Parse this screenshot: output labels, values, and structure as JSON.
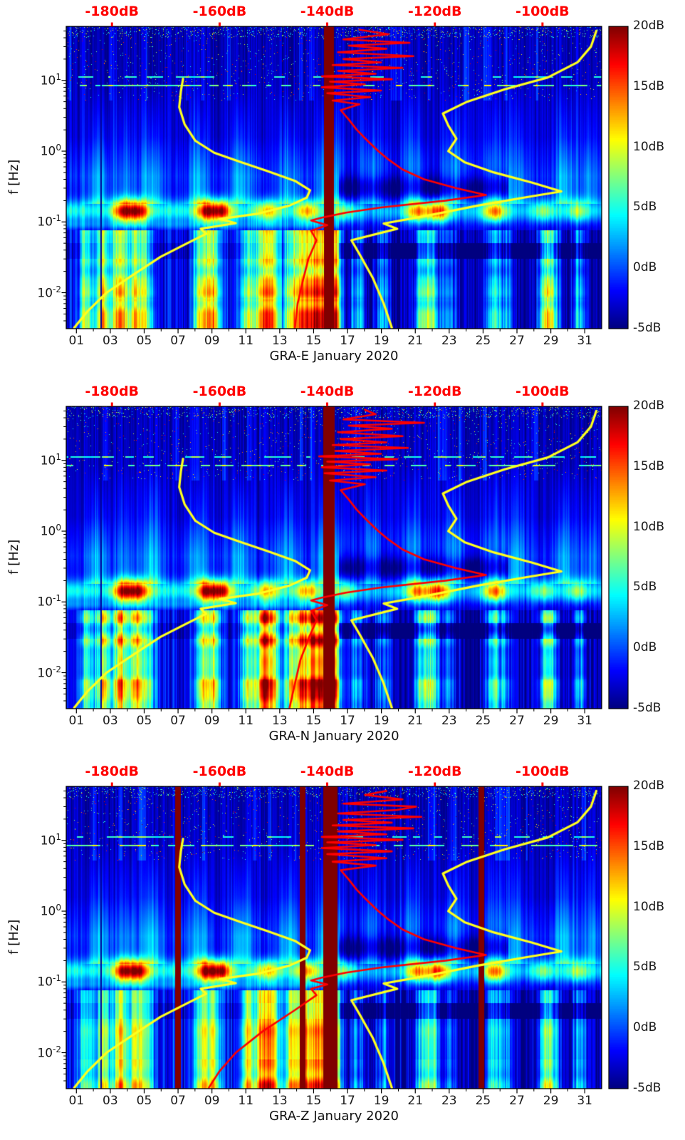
{
  "colors": {
    "background": "#ffffff",
    "top_axis_text": "#ff0000",
    "tick_text": "#1a1a1a",
    "plot_border": "#000000",
    "noise_model_curve": "#ffff1e",
    "spectrum_curve": "#ff0000"
  },
  "chart_data": {
    "type": "heatmap",
    "ylabel": "f [Hz]",
    "value_unit": "dB",
    "axes": {
      "top_db": {
        "labels": [
          "-180dB",
          "-160dB",
          "-140dB",
          "-120dB",
          "-100dB"
        ],
        "values": [
          -180,
          -160,
          -140,
          -120,
          -100
        ],
        "range": [
          -188.5,
          -89
        ]
      },
      "x_day": {
        "tick_labels": [
          "01",
          "03",
          "05",
          "07",
          "09",
          "11",
          "13",
          "15",
          "17",
          "19",
          "21",
          "23",
          "25",
          "27",
          "29",
          "31"
        ],
        "tick_values": [
          1,
          3,
          5,
          7,
          9,
          11,
          13,
          15,
          17,
          19,
          21,
          23,
          25,
          27,
          29,
          31
        ],
        "minor_values": [
          2,
          4,
          6,
          8,
          10,
          12,
          14,
          16,
          18,
          20,
          22,
          24,
          26,
          28,
          30
        ],
        "range": [
          0.4,
          32.0
        ]
      },
      "y_freq": {
        "tick_base": "10",
        "tick_exponents": [
          "-2",
          "-1",
          "0",
          "1"
        ],
        "tick_values": [
          0.01,
          0.1,
          1,
          10
        ],
        "range_hz": [
          0.0031,
          58
        ],
        "scale": "log"
      },
      "colorbar": {
        "tick_labels": [
          "20dB",
          "15dB",
          "10dB",
          "5dB",
          "0dB",
          "-5dB"
        ],
        "tick_values": [
          20,
          15,
          10,
          5,
          0,
          -5
        ],
        "range": [
          -5,
          20
        ]
      }
    },
    "noise_models": {
      "low_f_db": [
        [
          0.0032,
          -187
        ],
        [
          0.0055,
          -184.5
        ],
        [
          0.01,
          -181
        ],
        [
          0.018,
          -176
        ],
        [
          0.032,
          -171
        ],
        [
          0.05,
          -166
        ],
        [
          0.068,
          -162.5
        ],
        [
          0.08,
          -163.5
        ],
        [
          0.096,
          -157
        ],
        [
          0.11,
          -160
        ],
        [
          0.13,
          -153
        ],
        [
          0.17,
          -147
        ],
        [
          0.22,
          -143.8
        ],
        [
          0.28,
          -143.2
        ],
        [
          0.38,
          -146
        ],
        [
          0.52,
          -151
        ],
        [
          0.7,
          -156
        ],
        [
          0.95,
          -161
        ],
        [
          1.4,
          -164.5
        ],
        [
          2.4,
          -166.5
        ],
        [
          4.2,
          -167.5
        ],
        [
          7,
          -167.2
        ],
        [
          10.5,
          -166.8
        ]
      ],
      "high_f_db": [
        [
          0.0032,
          -128
        ],
        [
          0.007,
          -129.5
        ],
        [
          0.016,
          -131.5
        ],
        [
          0.035,
          -134
        ],
        [
          0.055,
          -135.5
        ],
        [
          0.08,
          -127
        ],
        [
          0.095,
          -129.5
        ],
        [
          0.12,
          -122
        ],
        [
          0.17,
          -112
        ],
        [
          0.22,
          -103.5
        ],
        [
          0.27,
          -96.5
        ],
        [
          0.36,
          -102
        ],
        [
          0.5,
          -109
        ],
        [
          0.7,
          -114.5
        ],
        [
          1.0,
          -117.5
        ],
        [
          1.5,
          -116
        ],
        [
          2.3,
          -117.5
        ],
        [
          3.4,
          -118.5
        ],
        [
          5,
          -114
        ],
        [
          7.5,
          -107
        ],
        [
          11,
          -99
        ],
        [
          18,
          -93.5
        ],
        [
          30,
          -91
        ],
        [
          50,
          -90
        ]
      ]
    },
    "texture": {
      "microseism_hotspots": [
        [
          3.9,
          1.0
        ],
        [
          4.7,
          0.75
        ],
        [
          8.8,
          1.0
        ],
        [
          9.5,
          0.8
        ],
        [
          12.3,
          0.5
        ],
        [
          14.6,
          0.55
        ],
        [
          16.8,
          0.35
        ],
        [
          21.1,
          0.75
        ],
        [
          22.4,
          0.9
        ],
        [
          25.7,
          0.8
        ],
        [
          28.6,
          0.35
        ],
        [
          30.6,
          0.4
        ]
      ],
      "plume_days": [
        [
          2.3,
          0.55
        ],
        [
          3.9,
          0.4
        ],
        [
          5.5,
          0.6
        ],
        [
          8.2,
          0.55
        ],
        [
          10.7,
          0.6
        ],
        [
          13.5,
          0.55
        ],
        [
          15.9,
          0.85
        ],
        [
          18.4,
          0.45
        ],
        [
          20.8,
          0.55
        ],
        [
          23.3,
          0.6
        ],
        [
          25.7,
          0.45
        ],
        [
          27.0,
          0.45
        ],
        [
          29.8,
          0.55
        ],
        [
          31.3,
          0.4
        ]
      ],
      "lp_bright_days": [
        [
          1.6,
          0.55
        ],
        [
          2.6,
          0.75
        ],
        [
          3.6,
          0.85
        ],
        [
          4.5,
          0.8
        ],
        [
          5.2,
          0.5
        ],
        [
          8.4,
          0.65
        ],
        [
          9.1,
          0.75
        ],
        [
          11.1,
          0.65
        ],
        [
          12.0,
          0.9
        ],
        [
          12.6,
          0.75
        ],
        [
          13.7,
          0.7
        ],
        [
          14.4,
          0.95
        ],
        [
          15.1,
          1.0
        ],
        [
          15.8,
          0.95
        ],
        [
          16.2,
          0.85
        ],
        [
          17.6,
          0.4
        ],
        [
          19.1,
          0.35
        ],
        [
          21.4,
          0.55
        ],
        [
          22.0,
          0.5
        ],
        [
          23.0,
          0.3
        ],
        [
          25.6,
          0.5
        ],
        [
          26.3,
          0.3
        ],
        [
          28.7,
          0.6
        ],
        [
          29.1,
          0.45
        ],
        [
          30.7,
          0.4
        ]
      ],
      "dark_line_day": 2.45
    },
    "panels": [
      {
        "station": "GRA-E",
        "xlabel": "GRA-E January 2020",
        "gap_days": [
          [
            15.9,
            0.6
          ]
        ],
        "red_spectrum_f_db": [
          [
            0.0032,
            -146
          ],
          [
            0.007,
            -145.5
          ],
          [
            0.015,
            -144.5
          ],
          [
            0.03,
            -143.5
          ],
          [
            0.055,
            -142
          ],
          [
            0.075,
            -143
          ],
          [
            0.09,
            -140
          ],
          [
            0.105,
            -143
          ],
          [
            0.115,
            -141
          ],
          [
            0.135,
            -136.5
          ],
          [
            0.16,
            -130
          ],
          [
            0.2,
            -118
          ],
          [
            0.24,
            -110.5
          ],
          [
            0.3,
            -116
          ],
          [
            0.4,
            -122
          ],
          [
            0.55,
            -126
          ],
          [
            0.75,
            -128.5
          ],
          [
            1.0,
            -130.5
          ],
          [
            1.4,
            -132.5
          ],
          [
            2.0,
            -134.5
          ],
          [
            2.8,
            -136
          ],
          [
            3.8,
            -137.5
          ],
          [
            4.6,
            -134
          ],
          [
            5.2,
            -139
          ],
          [
            5.8,
            -132
          ],
          [
            6.6,
            -140
          ],
          [
            7.2,
            -130
          ],
          [
            8.0,
            -141
          ],
          [
            8.8,
            -133
          ],
          [
            9.6,
            -139.5
          ],
          [
            10.4,
            -128
          ],
          [
            11.4,
            -141
          ],
          [
            12.4,
            -131
          ],
          [
            13.6,
            -138
          ],
          [
            15,
            -126
          ],
          [
            16.5,
            -139
          ],
          [
            18,
            -130
          ],
          [
            20,
            -137
          ],
          [
            22,
            -124
          ],
          [
            25,
            -138
          ],
          [
            28,
            -129
          ],
          [
            31,
            -136
          ],
          [
            34,
            -124.7
          ],
          [
            38,
            -137
          ],
          [
            45,
            -128.6
          ],
          [
            52,
            -134
          ]
        ]
      },
      {
        "station": "GRA-N",
        "xlabel": "GRA-N January 2020",
        "gap_days": [
          [
            15.9,
            0.65
          ]
        ],
        "red_spectrum_f_db": [
          [
            0.0032,
            -147
          ],
          [
            0.007,
            -146
          ],
          [
            0.015,
            -145
          ],
          [
            0.03,
            -143.5
          ],
          [
            0.055,
            -142
          ],
          [
            0.075,
            -143
          ],
          [
            0.09,
            -140
          ],
          [
            0.105,
            -143
          ],
          [
            0.115,
            -141
          ],
          [
            0.135,
            -136.5
          ],
          [
            0.16,
            -130
          ],
          [
            0.2,
            -118
          ],
          [
            0.24,
            -110.5
          ],
          [
            0.3,
            -116
          ],
          [
            0.4,
            -122
          ],
          [
            0.55,
            -126
          ],
          [
            0.75,
            -128.5
          ],
          [
            1.0,
            -130.5
          ],
          [
            1.4,
            -132.5
          ],
          [
            2.0,
            -134.5
          ],
          [
            2.8,
            -136
          ],
          [
            3.8,
            -137.5
          ],
          [
            4.6,
            -133
          ],
          [
            5.2,
            -139.5
          ],
          [
            5.8,
            -131
          ],
          [
            6.6,
            -140.5
          ],
          [
            7.2,
            -129
          ],
          [
            8.0,
            -141
          ],
          [
            8.8,
            -132
          ],
          [
            9.6,
            -140
          ],
          [
            10.4,
            -127
          ],
          [
            11.4,
            -141.5
          ],
          [
            12.4,
            -130
          ],
          [
            13.6,
            -138.5
          ],
          [
            15,
            -125
          ],
          [
            16.5,
            -139
          ],
          [
            18,
            -129
          ],
          [
            20,
            -137.5
          ],
          [
            22,
            -126
          ],
          [
            25,
            -138
          ],
          [
            28,
            -128
          ],
          [
            31,
            -136
          ],
          [
            34,
            -122
          ],
          [
            38,
            -137
          ],
          [
            45,
            -131
          ],
          [
            52,
            -133
          ]
        ]
      },
      {
        "station": "GRA-Z",
        "xlabel": "GRA-Z January 2020",
        "gap_days": [
          [
            7.0,
            0.3
          ],
          [
            14.35,
            0.3
          ],
          [
            16.0,
            0.85
          ],
          [
            24.9,
            0.35
          ]
        ],
        "red_spectrum_f_db": [
          [
            0.0032,
            -162
          ],
          [
            0.0055,
            -160
          ],
          [
            0.01,
            -157
          ],
          [
            0.02,
            -152
          ],
          [
            0.04,
            -146
          ],
          [
            0.065,
            -142
          ],
          [
            0.08,
            -143
          ],
          [
            0.092,
            -140
          ],
          [
            0.105,
            -143
          ],
          [
            0.115,
            -141
          ],
          [
            0.135,
            -136.5
          ],
          [
            0.16,
            -130
          ],
          [
            0.2,
            -118
          ],
          [
            0.24,
            -110.5
          ],
          [
            0.3,
            -116
          ],
          [
            0.4,
            -122
          ],
          [
            0.55,
            -126
          ],
          [
            0.75,
            -128.5
          ],
          [
            1.0,
            -130.5
          ],
          [
            1.4,
            -132.5
          ],
          [
            2.0,
            -134.5
          ],
          [
            2.8,
            -136
          ],
          [
            3.8,
            -137.5
          ],
          [
            4.4,
            -131
          ],
          [
            5.0,
            -139
          ],
          [
            5.6,
            -129
          ],
          [
            6.4,
            -140
          ],
          [
            7.0,
            -128
          ],
          [
            7.8,
            -141
          ],
          [
            8.6,
            -131
          ],
          [
            9.4,
            -140
          ],
          [
            10.2,
            -126
          ],
          [
            11.2,
            -141
          ],
          [
            12.2,
            -129
          ],
          [
            13.4,
            -138
          ],
          [
            14.8,
            -124
          ],
          [
            16.3,
            -139
          ],
          [
            17.8,
            -128
          ],
          [
            19.5,
            -137
          ],
          [
            21.5,
            -122.5
          ],
          [
            24,
            -138
          ],
          [
            27,
            -127
          ],
          [
            30,
            -123.5
          ],
          [
            33,
            -137
          ],
          [
            38,
            -126
          ],
          [
            44,
            -133
          ],
          [
            50,
            -129
          ]
        ]
      }
    ]
  }
}
